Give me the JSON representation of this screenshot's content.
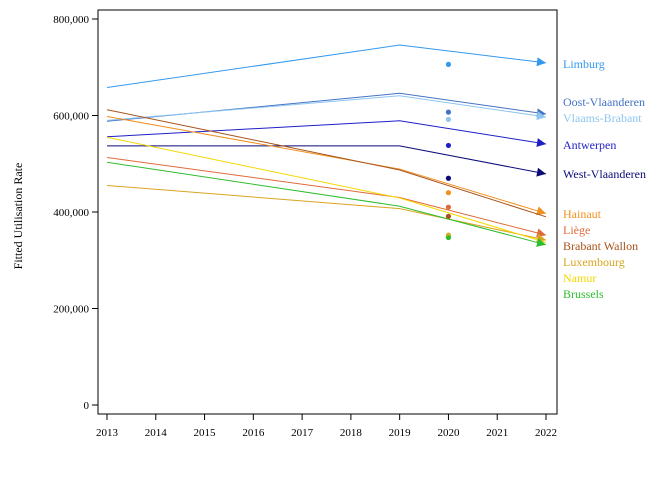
{
  "chart_data": {
    "type": "line",
    "title": "",
    "xlabel": "",
    "ylabel": "Fitted Utilisation Rate",
    "xlim": [
      2013,
      2022
    ],
    "ylim": [
      0,
      800000
    ],
    "x_ticks": [
      "2013",
      "2014",
      "2015",
      "2016",
      "2017",
      "2018",
      "2019",
      "2020",
      "2021",
      "2022"
    ],
    "y_ticks": [
      {
        "value": 0,
        "label": "0"
      },
      {
        "value": 200000,
        "label": "200,000"
      },
      {
        "value": 400000,
        "label": "400,000"
      },
      {
        "value": 600000,
        "label": "600,000"
      },
      {
        "value": 800000,
        "label": "800,000"
      }
    ],
    "grid": false,
    "legend": "none",
    "x": [
      2013,
      2019,
      2022
    ],
    "series": [
      {
        "name": "Limburg",
        "color": "#3399ee",
        "values": [
          658000,
          746000,
          709000
        ],
        "point_2020": 706000,
        "arrow": true
      },
      {
        "name": "Oost-Vlaanderen",
        "color": "#4472c4",
        "values": [
          588000,
          646000,
          603000
        ],
        "point_2020": 607000,
        "arrow": true
      },
      {
        "name": "Vlaams-Brabant",
        "color": "#8ec6f0",
        "values": [
          590000,
          641000,
          597000
        ],
        "point_2020": 592000,
        "arrow": true
      },
      {
        "name": "Antwerpen",
        "color": "#1f1fc8",
        "values": [
          556000,
          589000,
          541000
        ],
        "point_2020": 538000,
        "arrow": true
      },
      {
        "name": "West-Vlaanderen",
        "color": "#0b0b7a",
        "values": [
          537000,
          537000,
          479000
        ],
        "point_2020": 470000,
        "arrow": true
      },
      {
        "name": "Hainaut",
        "color": "#f0901e",
        "values": [
          598000,
          489000,
          397000
        ],
        "point_2020": 440000,
        "arrow": true
      },
      {
        "name": "Liège",
        "color": "#e06a3a",
        "values": [
          513000,
          430000,
          352000
        ],
        "point_2020": 410000,
        "arrow": true
      },
      {
        "name": "Brabant Wallon",
        "color": "#a8531a",
        "values": [
          612000,
          487000,
          390000
        ],
        "point_2020": 391000,
        "arrow": false
      },
      {
        "name": "Luxembourg",
        "color": "#d9a520",
        "values": [
          455000,
          407000,
          342000
        ],
        "point_2020": 352000,
        "arrow": true
      },
      {
        "name": "Namur",
        "color": "#f5d800",
        "values": [
          555000,
          429000,
          337000
        ],
        "point_2020": 348000,
        "arrow": false
      },
      {
        "name": "Brussels",
        "color": "#2ebd2e",
        "values": [
          503000,
          412000,
          332000
        ],
        "point_2020": 347000,
        "arrow": true
      }
    ],
    "label_order": [
      "Limburg",
      "Oost-Vlaanderen",
      "Vlaams-Brabant",
      "Antwerpen",
      "West-Vlaanderen",
      "Hainaut",
      "Liège",
      "Brabant Wallon",
      "Luxembourg",
      "Namur",
      "Brussels"
    ]
  }
}
